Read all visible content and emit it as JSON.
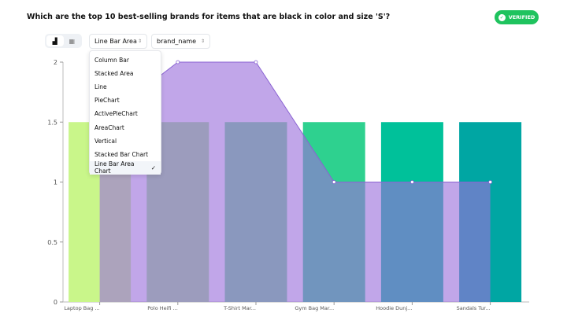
{
  "header": {
    "question": "Which are the top 10 best-selling brands for items that are black in color and size 'S'?",
    "badge": "VERIFIED"
  },
  "toolbar": {
    "chart_type": "Line Bar Area Ch",
    "field": "brand_name"
  },
  "menu": {
    "items": [
      "Column Bar",
      "Stacked Area",
      "Line",
      "PieChart",
      "ActivePieChart",
      "AreaChart",
      "Vertical",
      "Stacked Bar Chart",
      "Line Bar Area Chart"
    ],
    "selected": "Line Bar Area Chart",
    "check": "✓"
  },
  "colors": {
    "area": "#9b6fdc",
    "bars": [
      "#c9f68a",
      "#9ee58c",
      "#6fd98e",
      "#2ed18f",
      "#00c19a",
      "#00a6a3"
    ]
  },
  "chart_data": {
    "type": "bar+area",
    "categories": [
      "Laptop Bag ...",
      "Polo Heifi ...",
      "T-Shirt Mar...",
      "Gym Bag Mar...",
      "Hoodie Dunj...",
      "Sandals Tur..."
    ],
    "series": [
      {
        "name": "bar",
        "type": "bar",
        "values": [
          1.5,
          1.5,
          1.5,
          1.5,
          1.5,
          1.5
        ]
      },
      {
        "name": "area",
        "type": "area",
        "values": [
          1.5,
          2,
          2,
          1,
          1,
          1
        ]
      }
    ],
    "yticks": [
      "0",
      "0.5",
      "1",
      "1.5",
      "2"
    ],
    "ylim": [
      0,
      2
    ]
  }
}
